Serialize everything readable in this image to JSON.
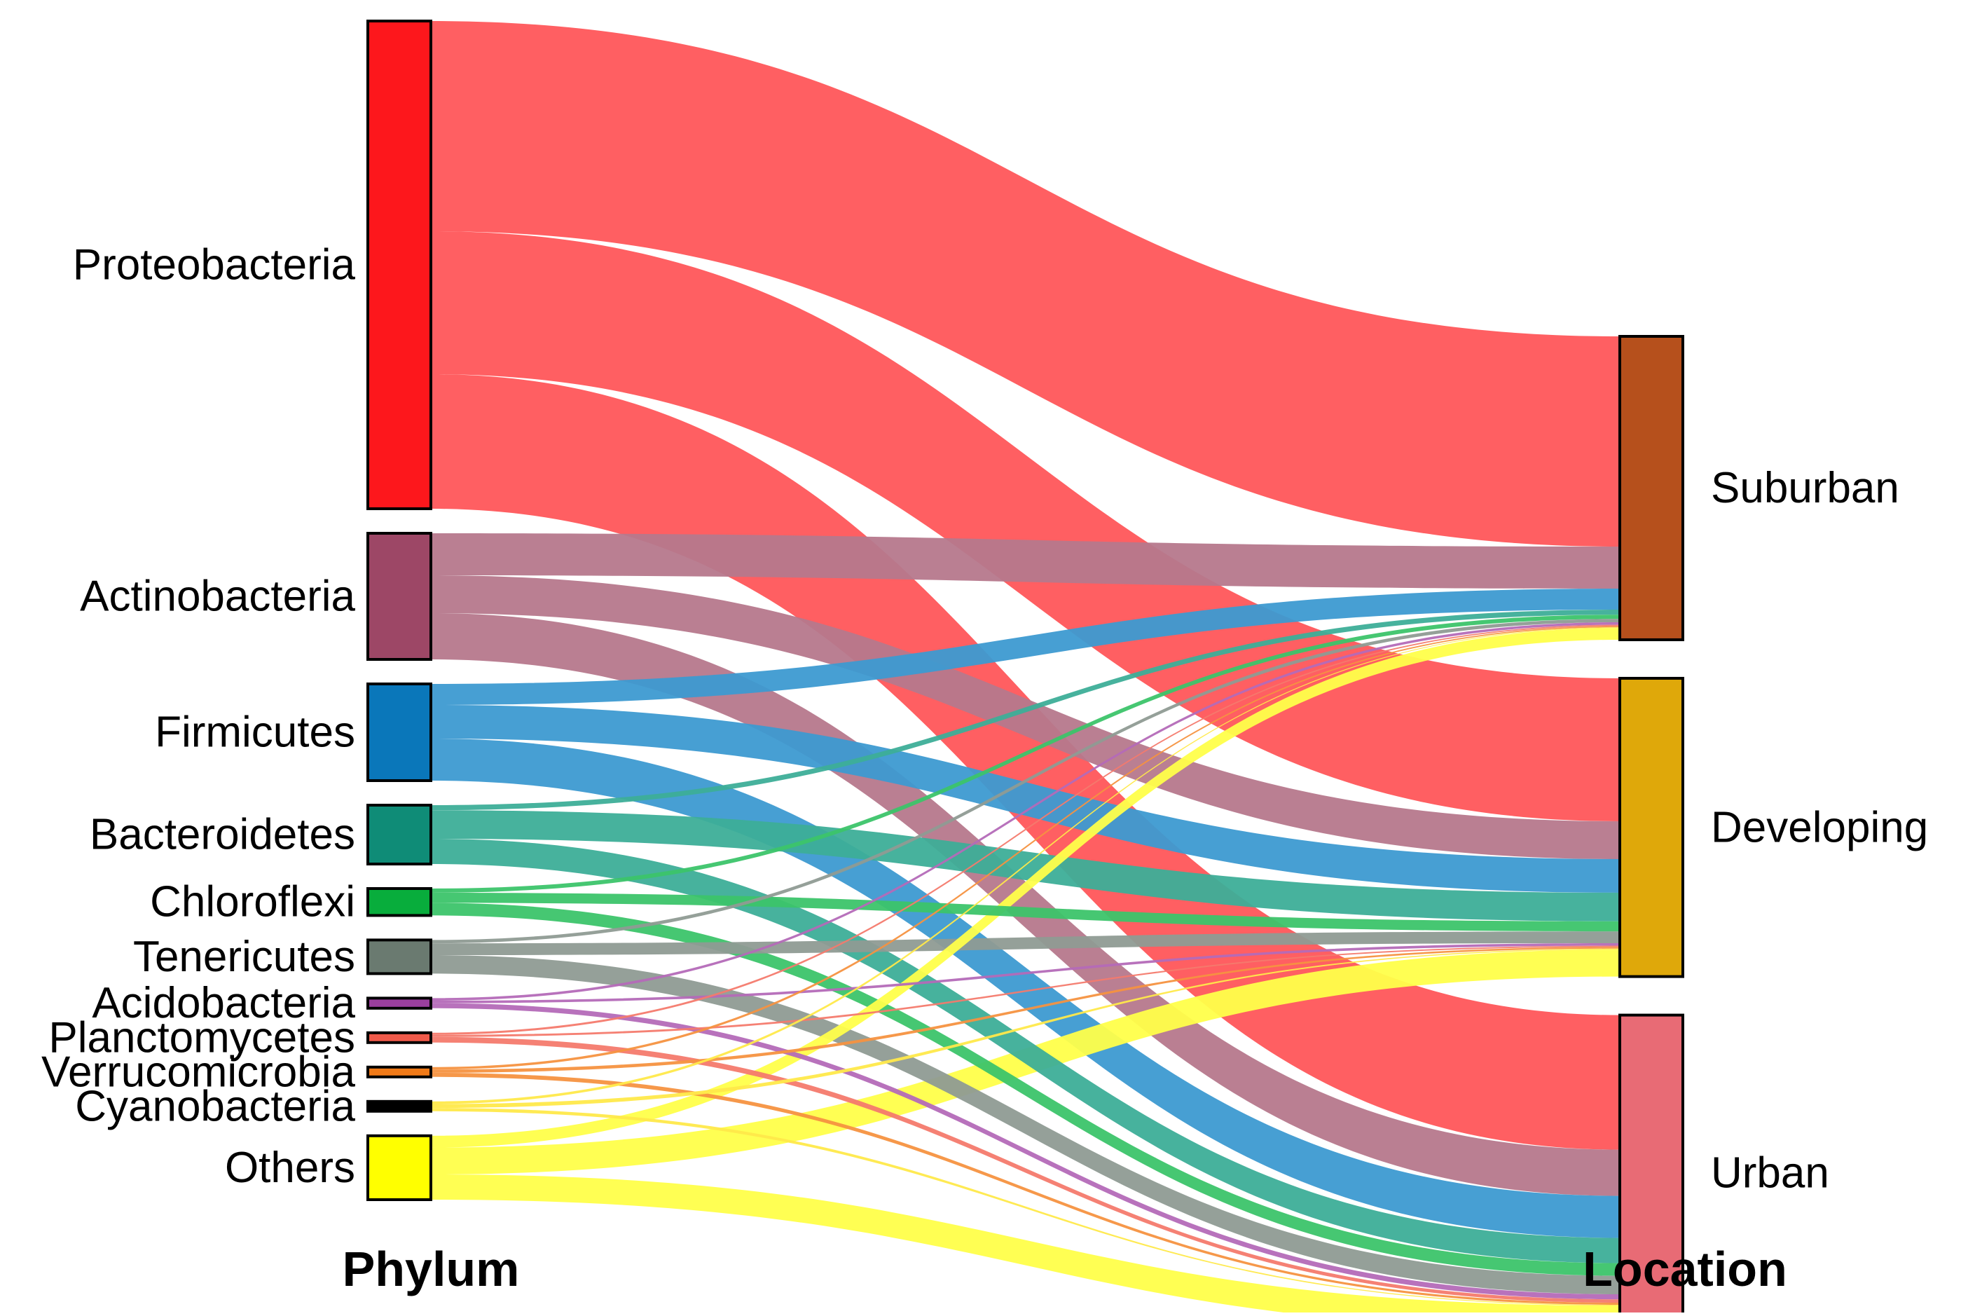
{
  "chart_data": {
    "type": "sankey",
    "column_labels": {
      "left": "Phylum",
      "right": "Location"
    },
    "sources": [
      {
        "name": "Proteobacteria",
        "color": "#fd171c"
      },
      {
        "name": "Actinobacteria",
        "color": "#9d4766"
      },
      {
        "name": "Firmicutes",
        "color": "#0a77ba"
      },
      {
        "name": "Bacteroidetes",
        "color": "#0f8c77"
      },
      {
        "name": "Chloroflexi",
        "color": "#08ad3c"
      },
      {
        "name": "Tenericutes",
        "color": "#6a7a70"
      },
      {
        "name": "Acidobacteria",
        "color": "#9b3f9e"
      },
      {
        "name": "Planctomycetes",
        "color": "#f05a4a"
      },
      {
        "name": "Verrucomicrobia",
        "color": "#f07a18"
      },
      {
        "name": "Cyanobacteria",
        "color": "#000000"
      },
      {
        "name": "Others",
        "color": "#ffff00"
      }
    ],
    "targets": [
      {
        "name": "Suburban",
        "color": "#b6501c"
      },
      {
        "name": "Developing",
        "color": "#dfa80a"
      },
      {
        "name": "Urban",
        "color": "#e86b75"
      }
    ],
    "flows": [
      {
        "source": "Proteobacteria",
        "target": "Suburban",
        "value": 250,
        "color": "#ff565a"
      },
      {
        "source": "Proteobacteria",
        "target": "Developing",
        "value": 170,
        "color": "#ff565a"
      },
      {
        "source": "Proteobacteria",
        "target": "Urban",
        "value": 160,
        "color": "#ff565a"
      },
      {
        "source": "Actinobacteria",
        "target": "Suburban",
        "value": 50,
        "color": "#b6788c"
      },
      {
        "source": "Actinobacteria",
        "target": "Developing",
        "value": 45,
        "color": "#b6788c"
      },
      {
        "source": "Actinobacteria",
        "target": "Urban",
        "value": 55,
        "color": "#b6788c"
      },
      {
        "source": "Firmicutes",
        "target": "Suburban",
        "value": 25,
        "color": "#3d9ad1"
      },
      {
        "source": "Firmicutes",
        "target": "Developing",
        "value": 40,
        "color": "#3d9ad1"
      },
      {
        "source": "Firmicutes",
        "target": "Urban",
        "value": 50,
        "color": "#3d9ad1"
      },
      {
        "source": "Bacteroidetes",
        "target": "Suburban",
        "value": 6,
        "color": "#3dae98"
      },
      {
        "source": "Bacteroidetes",
        "target": "Developing",
        "value": 34,
        "color": "#3dae98"
      },
      {
        "source": "Bacteroidetes",
        "target": "Urban",
        "value": 30,
        "color": "#3dae98"
      },
      {
        "source": "Chloroflexi",
        "target": "Suburban",
        "value": 5,
        "color": "#3cc46a"
      },
      {
        "source": "Chloroflexi",
        "target": "Developing",
        "value": 12,
        "color": "#3cc46a"
      },
      {
        "source": "Chloroflexi",
        "target": "Urban",
        "value": 15,
        "color": "#3cc46a"
      },
      {
        "source": "Tenericutes",
        "target": "Suburban",
        "value": 4,
        "color": "#8f9b94"
      },
      {
        "source": "Tenericutes",
        "target": "Developing",
        "value": 14,
        "color": "#8f9b94"
      },
      {
        "source": "Tenericutes",
        "target": "Urban",
        "value": 22,
        "color": "#8f9b94"
      },
      {
        "source": "Acidobacteria",
        "target": "Suburban",
        "value": 3,
        "color": "#b46ab8"
      },
      {
        "source": "Acidobacteria",
        "target": "Developing",
        "value": 3,
        "color": "#b46ab8"
      },
      {
        "source": "Acidobacteria",
        "target": "Urban",
        "value": 6,
        "color": "#b46ab8"
      },
      {
        "source": "Planctomycetes",
        "target": "Suburban",
        "value": 1.5,
        "color": "#f47a6d"
      },
      {
        "source": "Planctomycetes",
        "target": "Developing",
        "value": 1.5,
        "color": "#f47a6d"
      },
      {
        "source": "Planctomycetes",
        "target": "Urban",
        "value": 4,
        "color": "#f47a6d"
      },
      {
        "source": "Verrucomicrobia",
        "target": "Suburban",
        "value": 1.5,
        "color": "#f59240"
      },
      {
        "source": "Verrucomicrobia",
        "target": "Developing",
        "value": 2,
        "color": "#f59240"
      },
      {
        "source": "Verrucomicrobia",
        "target": "Urban",
        "value": 2.5,
        "color": "#f59240"
      },
      {
        "source": "Cyanobacteria",
        "target": "Suburban",
        "value": 0.8,
        "color": "#ffe94a"
      },
      {
        "source": "Cyanobacteria",
        "target": "Developing",
        "value": 1.2,
        "color": "#ffe94a"
      },
      {
        "source": "Cyanobacteria",
        "target": "Urban",
        "value": 1,
        "color": "#ffe94a"
      },
      {
        "source": "Others",
        "target": "Suburban",
        "value": 14,
        "color": "#ffff4a"
      },
      {
        "source": "Others",
        "target": "Developing",
        "value": 32,
        "color": "#ffff4a"
      },
      {
        "source": "Others",
        "target": "Urban",
        "value": 30,
        "color": "#ffff4a"
      }
    ]
  }
}
